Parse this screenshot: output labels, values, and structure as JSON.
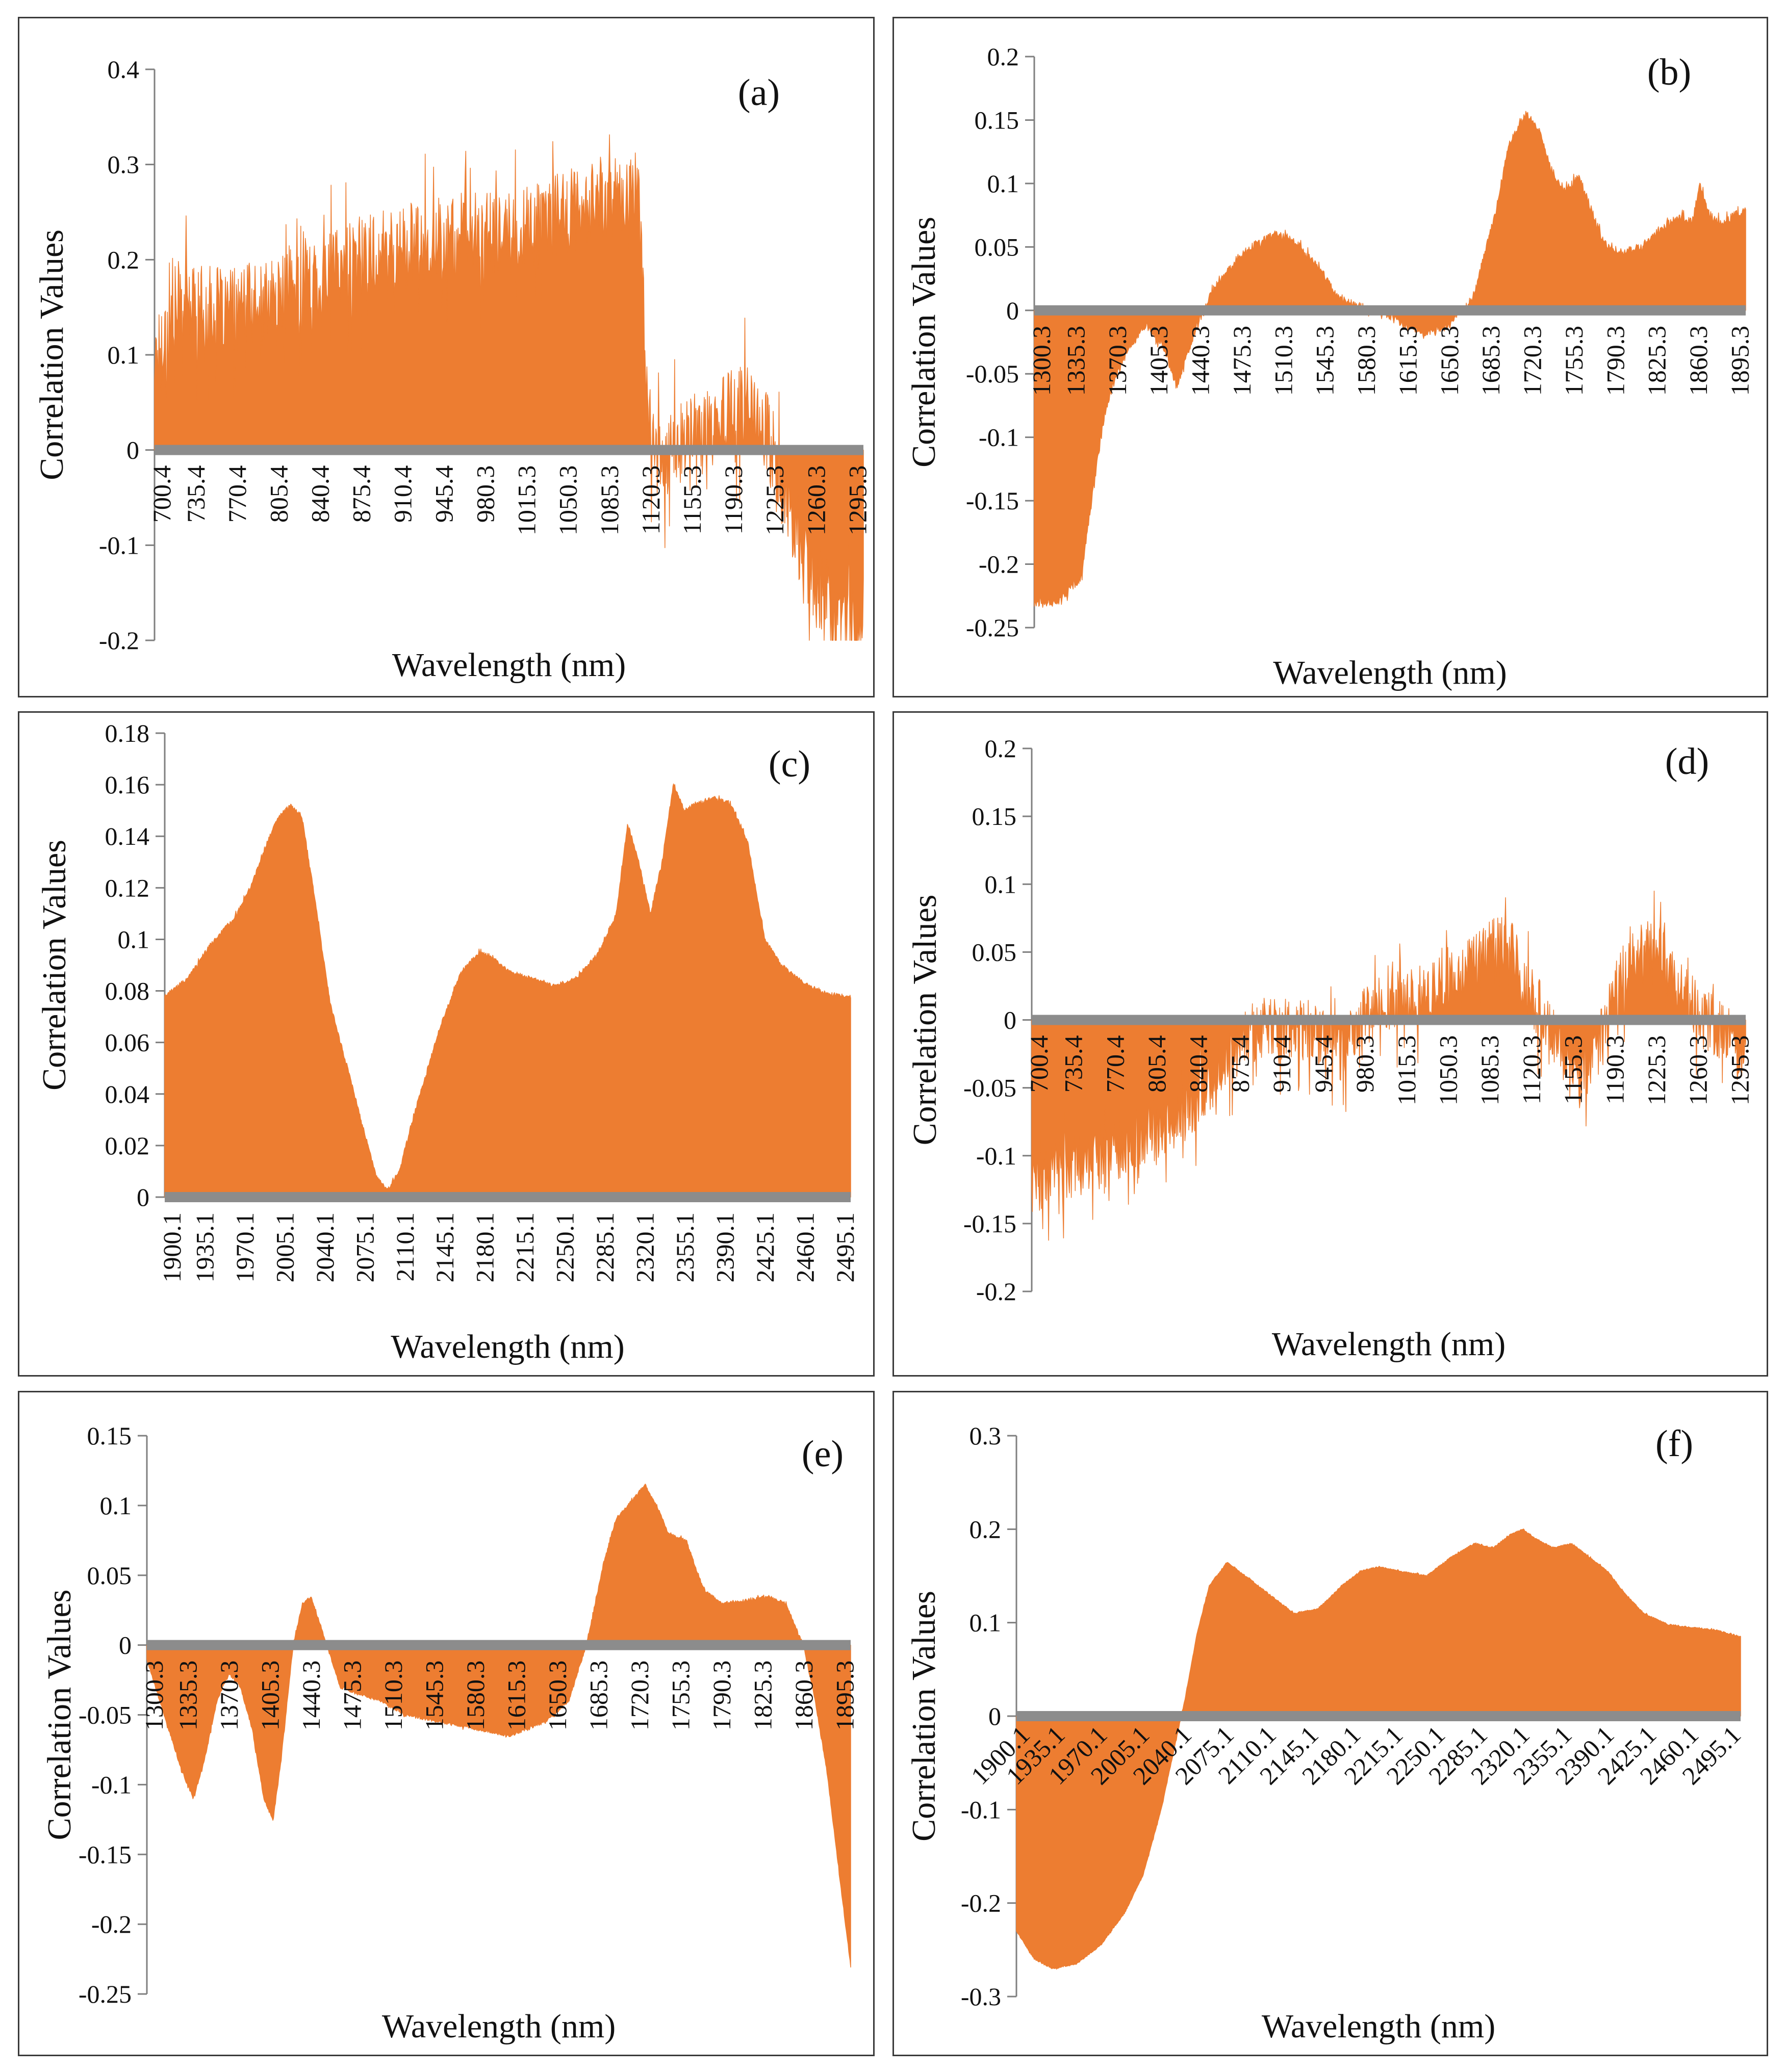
{
  "colors": {
    "fill": "#ED7D31",
    "zero_line": "#8C8C8C",
    "axis": "#7F7F7F",
    "border": "#3a3a3a"
  },
  "chart_data": [
    {
      "id": "a",
      "type": "area",
      "panel_label": "(a)",
      "xlabel": "Wavelength (nm)",
      "ylabel": "Correlation Values",
      "ylim": [
        -0.2,
        0.4
      ],
      "yticks": [
        "-0.2",
        "-0.1",
        "0",
        "0.1",
        "0.2",
        "0.3",
        "0.4"
      ],
      "xlim": [
        700.4,
        1300.3
      ],
      "xticks": [
        "700.4",
        "735.4",
        "770.4",
        "805.4",
        "840.4",
        "875.4",
        "910.4",
        "945.4",
        "980.3",
        "1015.3",
        "1050.3",
        "1085.3",
        "1120.3",
        "1155.3",
        "1190.3",
        "1225.3",
        "1260.3",
        "1295.3"
      ],
      "noise": 0.09,
      "series": [
        {
          "name": "correlation",
          "x": [
            700.4,
            720,
            760,
            800,
            840,
            880,
            920,
            960,
            1000,
            1040,
            1080,
            1110,
            1118,
            1125,
            1140,
            1160,
            1180,
            1200,
            1215,
            1225,
            1240,
            1260,
            1280,
            1300.3
          ],
          "y": [
            0.1,
            0.16,
            0.15,
            0.16,
            0.19,
            0.21,
            0.22,
            0.23,
            0.23,
            0.25,
            0.27,
            0.28,
            0.05,
            -0.01,
            0.01,
            0.02,
            0.04,
            0.05,
            0.04,
            -0.01,
            -0.08,
            -0.13,
            -0.18,
            -0.2
          ]
        }
      ]
    },
    {
      "id": "b",
      "type": "area",
      "panel_label": "(b)",
      "xlabel": "Wavelength (nm)",
      "ylabel": "Correlation Values",
      "ylim": [
        -0.25,
        0.2
      ],
      "yticks": [
        "-0.25",
        "-0.2",
        "-0.15",
        "-0.1",
        "-0.05",
        "0",
        "0.05",
        "0.1",
        "0.15",
        "0.2"
      ],
      "xlim": [
        1300.3,
        1900.3
      ],
      "xticks": [
        "1300.3",
        "1335.3",
        "1370.3",
        "1405.3",
        "1440.3",
        "1475.3",
        "1510.3",
        "1545.3",
        "1580.3",
        "1615.3",
        "1650.3",
        "1685.3",
        "1720.3",
        "1755.3",
        "1790.3",
        "1825.3",
        "1860.3",
        "1895.3"
      ],
      "noise": 0.006,
      "series": [
        {
          "name": "correlation",
          "x": [
            1300.3,
            1320,
            1340,
            1350,
            1360,
            1370,
            1380,
            1395,
            1410,
            1420,
            1435,
            1450,
            1470,
            1490,
            1505,
            1520,
            1540,
            1555,
            1570,
            1590,
            1610,
            1630,
            1650,
            1670,
            1690,
            1700,
            1715,
            1725,
            1735,
            1745,
            1760,
            1770,
            1780,
            1790,
            1810,
            1830,
            1845,
            1855,
            1862,
            1870,
            1880,
            1900.3
          ],
          "y": [
            -0.23,
            -0.23,
            -0.21,
            -0.14,
            -0.08,
            -0.05,
            -0.03,
            -0.01,
            -0.03,
            -0.06,
            -0.02,
            0.015,
            0.04,
            0.055,
            0.062,
            0.055,
            0.035,
            0.012,
            0.005,
            0.0,
            -0.01,
            -0.018,
            -0.012,
            0.01,
            0.08,
            0.13,
            0.155,
            0.145,
            0.115,
            0.095,
            0.105,
            0.08,
            0.055,
            0.045,
            0.05,
            0.065,
            0.075,
            0.07,
            0.1,
            0.075,
            0.07,
            0.08
          ]
        }
      ]
    },
    {
      "id": "c",
      "type": "area",
      "panel_label": "(c)",
      "xlabel": "Wavelength (nm)",
      "ylabel": "Correlation Values",
      "ylim": [
        0,
        0.18
      ],
      "yticks": [
        "0",
        "0.02",
        "0.04",
        "0.06",
        "0.08",
        "0.1",
        "0.12",
        "0.14",
        "0.16",
        "0.18"
      ],
      "xlim": [
        1900.1,
        2500.1
      ],
      "xticks": [
        "1900.1",
        "1935.1",
        "1970.1",
        "2005.1",
        "2040.1",
        "2075.1",
        "2110.1",
        "2145.1",
        "2180.1",
        "2215.1",
        "2250.1",
        "2285.1",
        "2320.1",
        "2355.1",
        "2390.1",
        "2425.1",
        "2460.1",
        "2495.1"
      ],
      "noise": 0.0015,
      "series": [
        {
          "name": "correlation",
          "x": [
            1900.1,
            1920,
            1940,
            1960,
            1975,
            1990,
            2000,
            2010,
            2020,
            2030,
            2045,
            2060,
            2075,
            2085,
            2095,
            2105,
            2120,
            2140,
            2160,
            2175,
            2185,
            2200,
            2220,
            2240,
            2260,
            2280,
            2295,
            2305,
            2315,
            2325,
            2335,
            2345,
            2355,
            2365,
            2380,
            2395,
            2410,
            2425,
            2440,
            2460,
            2480,
            2500.1
          ],
          "y": [
            0.078,
            0.085,
            0.098,
            0.108,
            0.12,
            0.138,
            0.148,
            0.152,
            0.148,
            0.12,
            0.075,
            0.05,
            0.025,
            0.008,
            0.003,
            0.01,
            0.035,
            0.065,
            0.088,
            0.095,
            0.094,
            0.088,
            0.085,
            0.082,
            0.085,
            0.095,
            0.11,
            0.145,
            0.13,
            0.11,
            0.13,
            0.16,
            0.15,
            0.153,
            0.155,
            0.153,
            0.138,
            0.1,
            0.09,
            0.083,
            0.079,
            0.078
          ]
        }
      ]
    },
    {
      "id": "d",
      "type": "area",
      "panel_label": "(d)",
      "xlabel": "Wavelength (nm)",
      "ylabel": "Correlation Values",
      "ylim": [
        -0.2,
        0.2
      ],
      "yticks": [
        "-0.2",
        "-0.15",
        "-0.1",
        "-0.05",
        "0",
        "0.05",
        "0.1",
        "0.15",
        "0.2"
      ],
      "xlim": [
        700.4,
        1300.3
      ],
      "xticks": [
        "700.4",
        "735.4",
        "770.4",
        "805.4",
        "840.4",
        "875.4",
        "910.4",
        "945.4",
        "980.3",
        "1015.3",
        "1050.3",
        "1085.3",
        "1120.3",
        "1155.3",
        "1190.3",
        "1225.3",
        "1260.3",
        "1295.3"
      ],
      "noise": 0.045,
      "series": [
        {
          "name": "correlation",
          "x": [
            700.4,
            720,
            760,
            800,
            840,
            860,
            880,
            900,
            920,
            940,
            960,
            980,
            1000,
            1020,
            1040,
            1060,
            1080,
            1100,
            1120,
            1140,
            1160,
            1175,
            1185,
            1200,
            1215,
            1230,
            1245,
            1260,
            1280,
            1300.3
          ],
          "y": [
            -0.12,
            -0.11,
            -0.1,
            -0.08,
            -0.06,
            -0.03,
            -0.01,
            0.0,
            -0.005,
            -0.01,
            -0.02,
            0.005,
            0.015,
            0.02,
            0.025,
            0.035,
            0.05,
            0.06,
            0.02,
            -0.01,
            -0.045,
            -0.02,
            0.01,
            0.04,
            0.055,
            0.055,
            0.03,
            0.005,
            -0.005,
            -0.02
          ]
        }
      ]
    },
    {
      "id": "e",
      "type": "area",
      "panel_label": "(e)",
      "xlabel": "Wavelength (nm)",
      "ylabel": "Correlation Values",
      "ylim": [
        -0.25,
        0.15
      ],
      "yticks": [
        "-0.25",
        "-0.2",
        "-0.15",
        "-0.1",
        "-0.05",
        "0",
        "0.05",
        "0.1",
        "0.15"
      ],
      "xlim": [
        1300.3,
        1900.3
      ],
      "xticks": [
        "1300.3",
        "1335.3",
        "1370.3",
        "1405.3",
        "1440.3",
        "1475.3",
        "1510.3",
        "1545.3",
        "1580.3",
        "1615.3",
        "1650.3",
        "1685.3",
        "1720.3",
        "1755.3",
        "1790.3",
        "1825.3",
        "1860.3",
        "1895.3"
      ],
      "noise": 0.002,
      "series": [
        {
          "name": "correlation",
          "x": [
            1300.3,
            1315,
            1330,
            1340,
            1350,
            1360,
            1370,
            1380,
            1390,
            1400,
            1408,
            1415,
            1425,
            1433,
            1440,
            1450,
            1465,
            1480,
            1500,
            1520,
            1550,
            1580,
            1610,
            1640,
            1660,
            1675,
            1690,
            1700,
            1715,
            1725,
            1735,
            1745,
            1760,
            1775,
            1790,
            1810,
            1830,
            1845,
            1860,
            1870,
            1880,
            1890,
            1900.3
          ],
          "y": [
            -0.01,
            -0.05,
            -0.09,
            -0.11,
            -0.08,
            -0.04,
            -0.02,
            -0.03,
            -0.06,
            -0.11,
            -0.125,
            -0.08,
            0.0,
            0.03,
            0.035,
            0.01,
            -0.03,
            -0.035,
            -0.04,
            -0.05,
            -0.055,
            -0.06,
            -0.065,
            -0.055,
            -0.04,
            0.0,
            0.06,
            0.09,
            0.105,
            0.115,
            0.1,
            0.08,
            0.075,
            0.04,
            0.03,
            0.032,
            0.035,
            0.03,
            0.0,
            -0.04,
            -0.09,
            -0.16,
            -0.23
          ]
        }
      ]
    },
    {
      "id": "f",
      "type": "area",
      "panel_label": "(f)",
      "xlabel": "Wavelength (nm)",
      "ylabel": "Correlation Values",
      "ylim": [
        -0.3,
        0.3
      ],
      "yticks": [
        "-0.3",
        "-0.2",
        "-0.1",
        "0",
        "0.1",
        "0.2",
        "0.3"
      ],
      "xlim": [
        1900.1,
        2500.1
      ],
      "xticks": [
        "1900.1",
        "1935.1",
        "1970.1",
        "2005.1",
        "2040.1",
        "2075.1",
        "2110.1",
        "2145.1",
        "2180.1",
        "2215.1",
        "2250.1",
        "2285.1",
        "2320.1",
        "2355.1",
        "2390.1",
        "2425.1",
        "2460.1",
        "2495.1"
      ],
      "noise": 0.0015,
      "series": [
        {
          "name": "correlation",
          "x": [
            1900.1,
            1915,
            1930,
            1950,
            1970,
            1990,
            2005,
            2020,
            2030,
            2040,
            2050,
            2060,
            2075,
            2090,
            2110,
            2130,
            2150,
            2170,
            2185,
            2200,
            2220,
            2240,
            2260,
            2280,
            2295,
            2310,
            2320,
            2330,
            2345,
            2360,
            2375,
            2390,
            2405,
            2420,
            2440,
            2460,
            2480,
            2500.1
          ],
          "y": [
            -0.23,
            -0.26,
            -0.27,
            -0.265,
            -0.245,
            -0.21,
            -0.17,
            -0.1,
            -0.04,
            0.02,
            0.09,
            0.14,
            0.165,
            0.15,
            0.13,
            0.11,
            0.115,
            0.14,
            0.155,
            0.16,
            0.155,
            0.15,
            0.17,
            0.185,
            0.18,
            0.195,
            0.2,
            0.19,
            0.18,
            0.185,
            0.17,
            0.155,
            0.13,
            0.11,
            0.098,
            0.095,
            0.092,
            0.085
          ]
        }
      ]
    }
  ]
}
